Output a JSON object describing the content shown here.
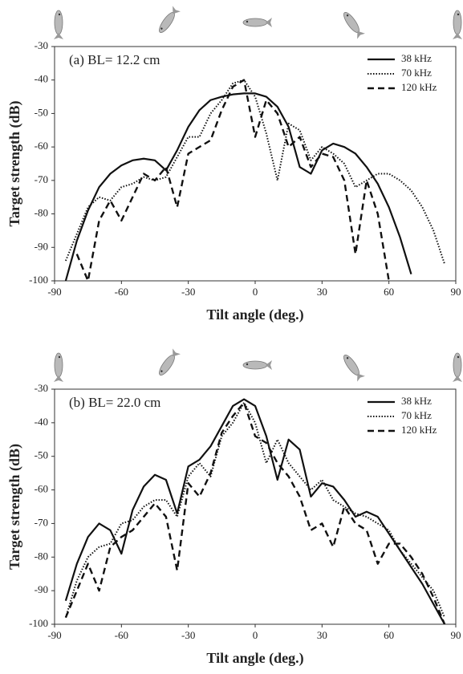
{
  "chart_data": [
    {
      "type": "line",
      "annotation": "(a) BL= 12.2 cm",
      "xlabel": "Tilt angle (deg.)",
      "ylabel": "Target strength (dB)",
      "xlim": [
        -90,
        90
      ],
      "xticks": [
        -90,
        -60,
        -30,
        0,
        30,
        60,
        90
      ],
      "ylim": [
        -100,
        -30
      ],
      "yticks": [
        -100,
        -90,
        -80,
        -70,
        -60,
        -50,
        -40,
        -30
      ],
      "legend": "upper right",
      "x": [
        -90,
        -85,
        -80,
        -75,
        -70,
        -65,
        -60,
        -55,
        -50,
        -45,
        -40,
        -35,
        -30,
        -25,
        -20,
        -15,
        -10,
        -5,
        0,
        5,
        10,
        15,
        20,
        25,
        30,
        35,
        40,
        45,
        50,
        55,
        60,
        65,
        70,
        75,
        80,
        85,
        90
      ],
      "series": [
        {
          "name": "38 kHz",
          "color": "#111111",
          "style": "solid",
          "values": [
            null,
            -100,
            -88,
            -79,
            -72,
            -68,
            -65.5,
            -64,
            -63.5,
            -64,
            -67,
            -61,
            -54,
            -49,
            -46,
            -45,
            -44.3,
            -44,
            -44,
            -45,
            -48,
            -54,
            -66,
            -68,
            -61,
            -59,
            -60,
            -62,
            -66,
            -71,
            -78,
            -87,
            -98,
            null,
            null,
            null,
            null
          ]
        },
        {
          "name": "70 kHz",
          "color": "#111111",
          "style": "dotted",
          "values": [
            null,
            -94,
            -86,
            -78,
            -75,
            -76,
            -72,
            -71,
            -69,
            -70,
            -69,
            -63,
            -57,
            -57,
            -50,
            -46,
            -41,
            -40,
            -45,
            -56,
            -70,
            -53,
            -55,
            -64,
            -60,
            -62,
            -65,
            -72,
            -70,
            -68,
            -68,
            -70,
            -73,
            -78,
            -85,
            -95,
            null
          ]
        },
        {
          "name": "120 kHz",
          "color": "#111111",
          "style": "dashed",
          "values": [
            null,
            null,
            -92,
            -100,
            -82,
            -76,
            -82,
            -75,
            -68,
            -70,
            -66,
            -78,
            -62,
            -60,
            -58,
            -49,
            -42,
            -40,
            -57,
            -46,
            -50,
            -60,
            -57,
            -66,
            -62,
            -63,
            -70,
            -92,
            -70,
            -80,
            -100,
            null,
            null,
            null,
            null,
            null,
            null
          ]
        }
      ]
    },
    {
      "type": "line",
      "annotation": "(b) BL= 22.0 cm",
      "xlabel": "Tilt angle (deg.)",
      "ylabel": "Target strength (dB)",
      "xlim": [
        -90,
        90
      ],
      "xticks": [
        -90,
        -60,
        -30,
        0,
        30,
        60,
        90
      ],
      "ylim": [
        -100,
        -30
      ],
      "yticks": [
        -100,
        -90,
        -80,
        -70,
        -60,
        -50,
        -40,
        -30
      ],
      "legend": "upper right",
      "x": [
        -90,
        -85,
        -80,
        -75,
        -70,
        -65,
        -60,
        -55,
        -50,
        -45,
        -40,
        -35,
        -30,
        -25,
        -20,
        -15,
        -10,
        -5,
        0,
        5,
        10,
        15,
        20,
        25,
        30,
        35,
        40,
        45,
        50,
        55,
        60,
        65,
        70,
        75,
        80,
        85,
        90
      ],
      "series": [
        {
          "name": "38 kHz",
          "color": "#111111",
          "style": "solid",
          "values": [
            null,
            -93,
            -82,
            -74,
            -70,
            -72,
            -79,
            -66,
            -59,
            -55.5,
            -57,
            -67,
            -53,
            -51,
            -47,
            -41,
            -35,
            -33,
            -35,
            -44,
            -57,
            -45,
            -48,
            -62,
            -58,
            -59,
            -63,
            -68,
            -66.5,
            -68,
            -73,
            -78,
            -83,
            -88,
            -94,
            -100,
            null
          ]
        },
        {
          "name": "70 kHz",
          "color": "#111111",
          "style": "dotted",
          "values": [
            null,
            -98,
            -87,
            -80,
            -77,
            -76,
            -70,
            -69,
            -65,
            -63,
            -63,
            -68,
            -56,
            -52,
            -56,
            -44,
            -40,
            -34,
            -40,
            -52,
            -45,
            -52,
            -56,
            -60,
            -57,
            -63,
            -65,
            -67,
            -68,
            -70,
            -72,
            -78,
            -82,
            -86,
            -90,
            -98,
            null
          ]
        },
        {
          "name": "120 kHz",
          "color": "#111111",
          "style": "dashed",
          "values": [
            null,
            -98,
            -90,
            -82,
            -90,
            -77,
            -74,
            -72,
            -68,
            -64,
            -68,
            -84,
            -58,
            -62,
            -55,
            -43,
            -38,
            -34,
            -44,
            -46,
            -52,
            -56,
            -62,
            -72,
            -70,
            -77,
            -65,
            -70,
            -72,
            -82,
            -76,
            -76,
            -80,
            -85,
            -92,
            -100,
            null
          ]
        }
      ]
    }
  ]
}
